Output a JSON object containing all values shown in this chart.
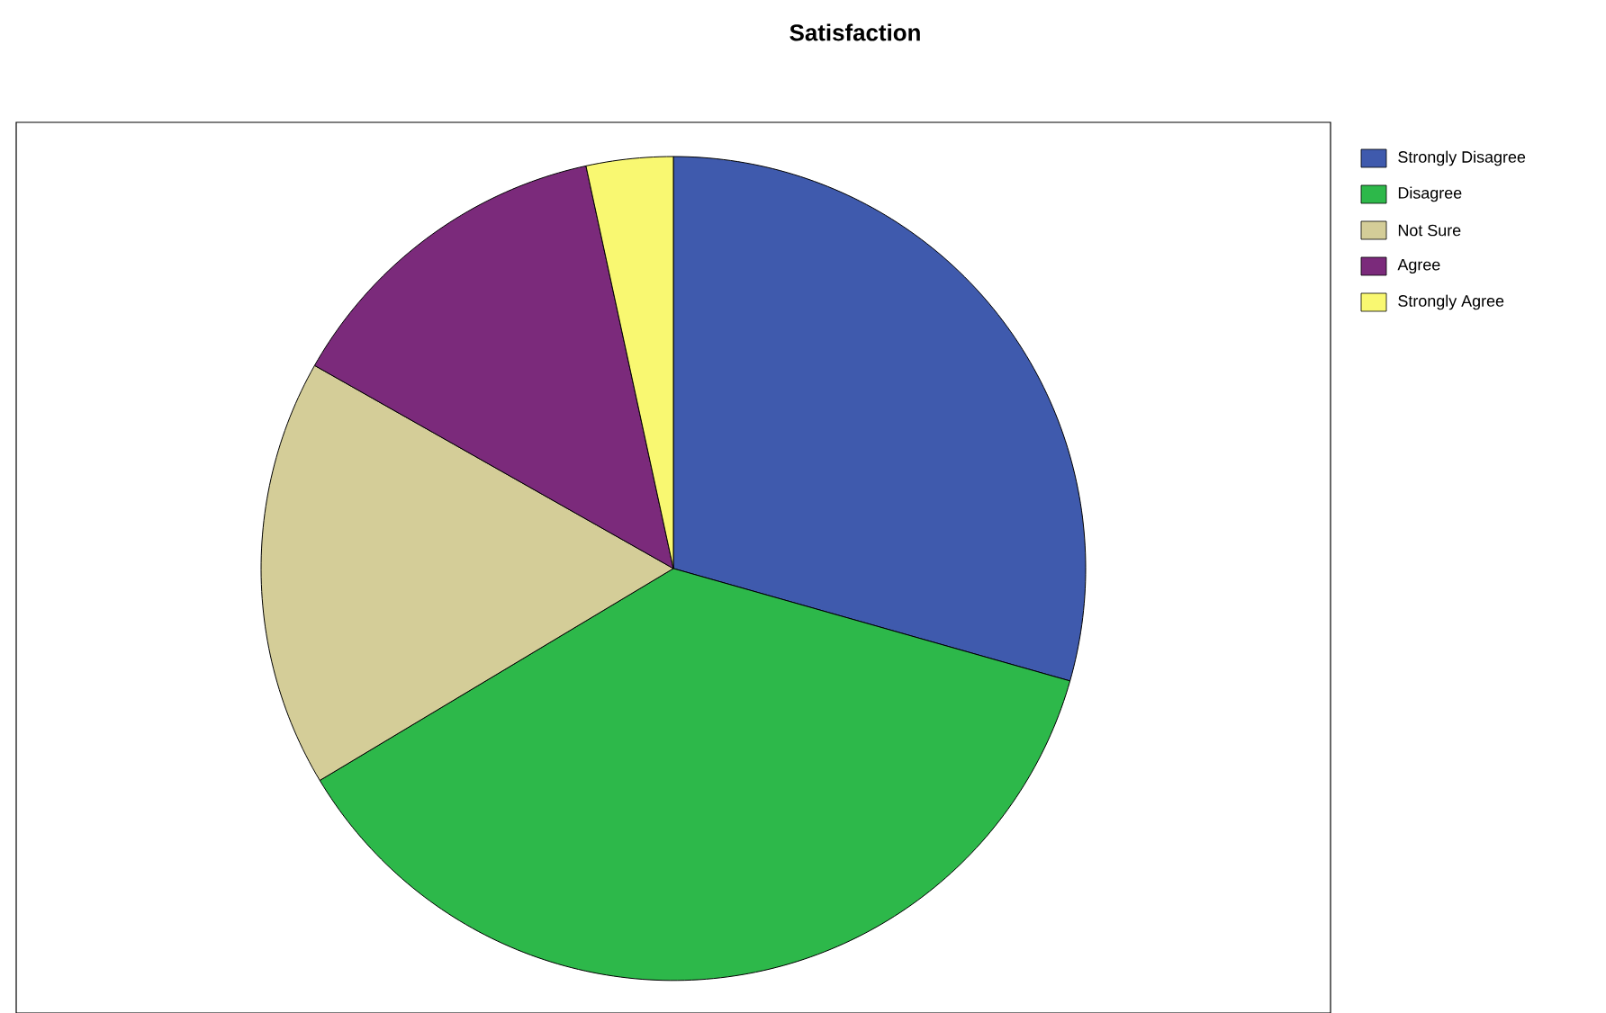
{
  "chart_data": {
    "type": "pie",
    "title": "Satisfaction",
    "categories": [
      "Strongly Disagree",
      "Disagree",
      "Not Sure",
      "Agree",
      "Strongly Agree"
    ],
    "values": [
      29.4,
      37.0,
      16.8,
      13.4,
      3.4
    ],
    "colors": [
      "#3f5aad",
      "#2db84a",
      "#d4cd98",
      "#7b2a7b",
      "#f9f871"
    ],
    "legend": "top right"
  }
}
